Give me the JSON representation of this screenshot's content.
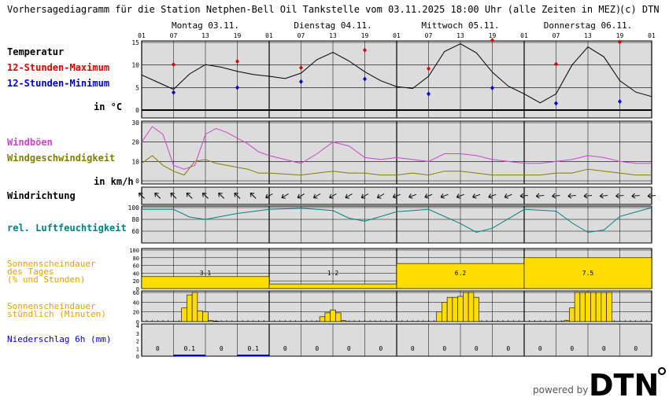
{
  "header": {
    "title": "Vorhersagediagramm für die Station Netphen-Bell Oil Tankstelle vom 03.11.2025 18:00 Uhr (alle Zeiten in MEZ)",
    "copyright": "(c) DTN"
  },
  "days": [
    "Montag 03.11.",
    "Dienstag 04.11.",
    "Mittwoch 05.11.",
    "Donnerstag 06.11."
  ],
  "hour_ticks": [
    "01",
    "07",
    "13",
    "19"
  ],
  "hour_tick_end": "01",
  "labels": {
    "temperatur": "Temperatur",
    "max": "12-Stunden-Maximum",
    "min": "12-Stunden-Minimum",
    "temp_unit": "in °C",
    "windboeen": "Windböen",
    "windgeschw": "Windgeschwindigkeit",
    "wind_unit": "in km/h",
    "windrichtung": "Windrichtung",
    "feuchte": "rel. Luftfeuchtigkeit",
    "sonne_tag": [
      "Sonnenscheindauer",
      "des Tages",
      "(% und Stunden)"
    ],
    "sonne_std": [
      "Sonnenscheindauer",
      "stündlich (Minuten)"
    ],
    "niederschlag": "Niederschlag 6h (mm)"
  },
  "footer": {
    "powered_by": "powered by",
    "brand": "DTN"
  },
  "colors": {
    "temp_line": "#000000",
    "max": "#dd0000",
    "min": "#0000cc",
    "gusts": "#cc44cc",
    "wind": "#808000",
    "humidity": "#008080",
    "sun": "#ffdd00",
    "sun_label": "#e8a000",
    "precip": "#0000cc",
    "panel_bg": "#dcdcdc"
  },
  "chart_data": [
    {
      "type": "line",
      "name": "temperature",
      "ylim": [
        0,
        15
      ],
      "yticks": [
        "0",
        "5",
        "10",
        "15"
      ],
      "x": [
        0,
        3,
        6,
        9,
        12,
        15,
        18,
        21,
        24,
        27,
        30,
        33,
        36,
        39,
        42,
        45,
        48,
        51,
        54,
        57,
        60,
        63,
        66,
        69,
        72,
        75,
        78,
        81,
        84,
        87,
        90,
        93,
        96
      ],
      "temperature": [
        7.8,
        6.2,
        4.6,
        8,
        10.1,
        9.5,
        8.6,
        7.9,
        7.5,
        7,
        8.2,
        11.2,
        12.8,
        10.9,
        8.5,
        6.5,
        5.2,
        4.8,
        7.5,
        13,
        14.7,
        12.7,
        8.4,
        5.3,
        3.6,
        1.6,
        3.6,
        10,
        14,
        11.8,
        6.5,
        4,
        3
      ],
      "max_x": [
        6,
        18,
        30,
        42,
        54,
        66,
        78,
        90
      ],
      "max": [
        10.1,
        10.8,
        9.4,
        13.3,
        9.2,
        15.5,
        10.2,
        15.1
      ],
      "min_x": [
        6,
        18,
        30,
        42,
        54,
        66,
        78,
        90
      ],
      "min": [
        3.9,
        5,
        6.3,
        6.9,
        3.6,
        4.9,
        1.5,
        1.9
      ]
    },
    {
      "type": "line",
      "name": "wind",
      "ylim": [
        0,
        30
      ],
      "yticks": [
        "0",
        "10",
        "20",
        "30"
      ],
      "x": [
        0,
        2,
        4,
        6,
        8,
        10,
        12,
        14,
        16,
        18,
        20,
        22,
        24,
        27,
        30,
        33,
        36,
        39,
        42,
        45,
        48,
        51,
        54,
        57,
        60,
        63,
        66,
        69,
        72,
        75,
        78,
        81,
        84,
        87,
        90,
        93,
        96
      ],
      "gusts": [
        20,
        28,
        24,
        8,
        6,
        8,
        24,
        27,
        25,
        22,
        19,
        15,
        13,
        11,
        9,
        14,
        20,
        18,
        12,
        11,
        12,
        11,
        10,
        14,
        14,
        13,
        11,
        10,
        9,
        9,
        10,
        11,
        13,
        12,
        10,
        9,
        9
      ],
      "speed": [
        9,
        13,
        8,
        5,
        3,
        10,
        11,
        9,
        8,
        7,
        6,
        4,
        4,
        3.5,
        3,
        4,
        5,
        4,
        4,
        3,
        3,
        4,
        3,
        5,
        5,
        4,
        3,
        3,
        3,
        3,
        4,
        4,
        6,
        5,
        4,
        3,
        3
      ]
    },
    {
      "type": "line",
      "name": "humidity",
      "ylim": [
        0,
        100
      ],
      "yticks": [
        "60",
        "80",
        "100"
      ],
      "x": [
        0,
        6,
        9,
        12,
        18,
        24,
        30,
        36,
        39,
        42,
        48,
        54,
        60,
        63,
        66,
        72,
        78,
        81,
        84,
        87,
        90,
        96
      ],
      "humidity": [
        97,
        97,
        84,
        80,
        90,
        97,
        99,
        95,
        82,
        77,
        93,
        97,
        73,
        58,
        65,
        97,
        94,
        74,
        58,
        62,
        85,
        100
      ]
    },
    {
      "type": "bar",
      "name": "sunshine_daily",
      "ylim": [
        0,
        100
      ],
      "yticks": [
        "0",
        "20",
        "40",
        "60",
        "80",
        "100"
      ],
      "categories": [
        "03.11.",
        "04.11.",
        "05.11.",
        "06.11."
      ],
      "percent": [
        31,
        12,
        65,
        80
      ],
      "hours": [
        "3.1",
        "1.2",
        "6.2",
        "7.5"
      ]
    },
    {
      "type": "bar",
      "name": "sunshine_hourly",
      "ylim": [
        0,
        60
      ],
      "yticks": [
        "0",
        "20",
        "40",
        "60"
      ],
      "hours_x": [
        8,
        9,
        10,
        11,
        12,
        13,
        14,
        34,
        35,
        36,
        37,
        38,
        56,
        57,
        58,
        59,
        60,
        61,
        62,
        63,
        80,
        81,
        82,
        83,
        84,
        85,
        86,
        87,
        88
      ],
      "minutes": [
        28,
        55,
        60,
        22,
        20,
        2,
        1,
        10,
        18,
        24,
        18,
        2,
        20,
        40,
        50,
        50,
        52,
        60,
        60,
        50,
        2,
        28,
        60,
        60,
        60,
        60,
        60,
        60,
        60
      ]
    },
    {
      "type": "bar",
      "name": "precipitation_6h",
      "ylim": [
        0,
        4
      ],
      "yticks": [
        "0",
        "1",
        "2",
        "3",
        "4"
      ],
      "values": [
        0,
        0.1,
        0,
        0.1,
        0,
        0,
        0,
        0,
        0,
        0,
        0,
        0,
        0,
        0,
        0,
        0
      ],
      "value_labels": [
        "0",
        "0.1",
        "0",
        "0.1",
        "0",
        "0",
        "0",
        "0",
        "0",
        "0",
        "0",
        "0",
        "0",
        "0",
        "0",
        "0"
      ]
    }
  ]
}
